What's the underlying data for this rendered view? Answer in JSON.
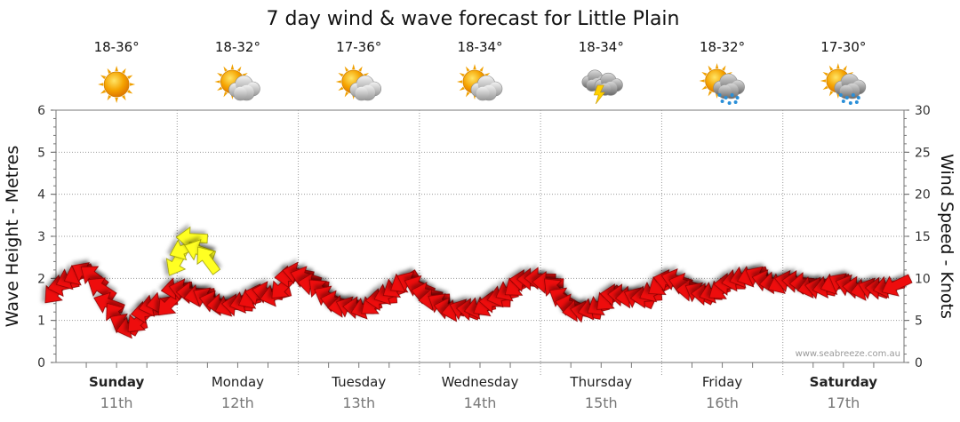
{
  "chart_data": {
    "type": "line",
    "title": "7 day wind & wave forecast for Little Plain",
    "ylabel_left": "Wave Height - Metres",
    "ylabel_right": "Wind Speed - Knots",
    "ylim_left": [
      0,
      6
    ],
    "ylim_right": [
      0,
      30
    ],
    "left_ticks": [
      "0",
      "1",
      "2",
      "3",
      "4",
      "5",
      "6"
    ],
    "right_ticks": [
      "0",
      "5",
      "10",
      "15",
      "20",
      "25",
      "30"
    ],
    "grid": true,
    "credit": "www.seabreeze.com.au",
    "days": [
      {
        "name": "Sunday",
        "date": "11th",
        "bold": true,
        "temp": "18-36°",
        "weather": "sunny-icon"
      },
      {
        "name": "Monday",
        "date": "12th",
        "bold": false,
        "temp": "18-32°",
        "weather": "partly-cloudy-icon"
      },
      {
        "name": "Tuesday",
        "date": "13th",
        "bold": false,
        "temp": "17-36°",
        "weather": "partly-cloudy-icon"
      },
      {
        "name": "Wednesday",
        "date": "14th",
        "bold": false,
        "temp": "18-34°",
        "weather": "partly-cloudy-icon"
      },
      {
        "name": "Thursday",
        "date": "15th",
        "bold": false,
        "temp": "18-34°",
        "weather": "storm-icon"
      },
      {
        "name": "Friday",
        "date": "16th",
        "bold": false,
        "temp": "18-32°",
        "weather": "sunny-showers-icon"
      },
      {
        "name": "Saturday",
        "date": "17th",
        "bold": true,
        "temp": "17-30°",
        "weather": "sunny-showers-icon"
      }
    ],
    "series": [
      {
        "color": "#ee1111",
        "t": [
          0.0,
          0.25,
          0.5,
          0.75,
          1.0,
          1.25,
          1.5,
          1.75,
          2.0,
          2.25,
          2.5,
          2.75,
          3.0,
          3.25,
          3.5,
          3.75,
          4.0,
          4.25,
          4.5,
          4.75,
          5.0,
          5.25,
          5.5,
          5.75,
          6.0,
          6.25,
          6.5,
          6.75,
          7.0,
          7.25,
          7.5,
          7.75,
          8.0,
          8.25,
          8.5,
          8.75,
          9.0,
          9.25,
          9.5,
          9.75,
          10.0,
          10.25,
          10.5,
          10.75,
          11.0,
          11.25,
          11.5,
          11.75,
          12.0,
          12.25,
          12.5,
          12.75,
          13.0,
          13.25,
          13.5,
          13.75,
          14.0,
          14.25,
          14.5,
          14.75,
          15.0,
          15.25,
          15.5,
          15.75,
          16.0,
          16.25,
          16.5,
          16.75,
          17.0,
          17.25,
          17.5,
          17.75,
          18.0,
          18.25,
          18.5,
          18.75,
          19.0,
          19.25,
          19.5,
          19.75,
          20.0,
          20.25,
          20.5,
          20.75,
          21.0,
          21.25,
          21.5,
          21.75,
          22.0,
          22.25,
          22.5,
          22.75,
          23.0,
          23.25,
          23.5,
          23.75,
          24.0,
          24.25,
          24.5,
          24.75,
          25.0,
          25.25,
          25.5,
          25.75,
          26.0,
          26.25,
          26.5,
          26.75,
          27.0,
          27.25,
          27.5,
          27.75
        ],
        "values": [
          8.5,
          9.2,
          10.0,
          10.5,
          10.6,
          10.2,
          8.8,
          7.0,
          5.5,
          4.5,
          4.2,
          5.0,
          6.0,
          6.8,
          7.1,
          7.0,
          8.8,
          8.6,
          8.3,
          8.0,
          7.6,
          7.2,
          6.9,
          6.8,
          6.8,
          7.2,
          7.7,
          8.0,
          8.3,
          8.0,
          9.0,
          10.2,
          10.6,
          10.1,
          9.3,
          8.5,
          7.8,
          7.2,
          6.7,
          6.5,
          6.5,
          6.5,
          7.0,
          7.5,
          8.2,
          9.0,
          9.6,
          9.5,
          9.0,
          8.2,
          7.5,
          6.9,
          6.4,
          6.2,
          6.2,
          6.3,
          6.5,
          6.8,
          7.2,
          7.9,
          8.6,
          9.2,
          9.7,
          9.9,
          10.0,
          9.5,
          8.6,
          7.6,
          6.8,
          6.2,
          6.0,
          6.4,
          6.9,
          7.6,
          8.0,
          8.0,
          7.8,
          7.6,
          7.8,
          8.5,
          9.3,
          9.7,
          9.8,
          9.3,
          8.6,
          8.2,
          8.1,
          8.4,
          8.8,
          9.3,
          9.8,
          10.2,
          10.3,
          10.1,
          9.7,
          9.5,
          9.5,
          9.6,
          9.6,
          9.4,
          9.0,
          8.8,
          9.0,
          9.4,
          9.3,
          9.1,
          8.9,
          8.7,
          8.7,
          8.8,
          9.0,
          9.2
        ]
      },
      {
        "color": "#ffff22",
        "t": [
          4.0,
          4.25,
          4.5,
          4.75,
          5.0
        ],
        "values": [
          12.0,
          13.5,
          14.8,
          13.3,
          12.2
        ]
      }
    ]
  }
}
